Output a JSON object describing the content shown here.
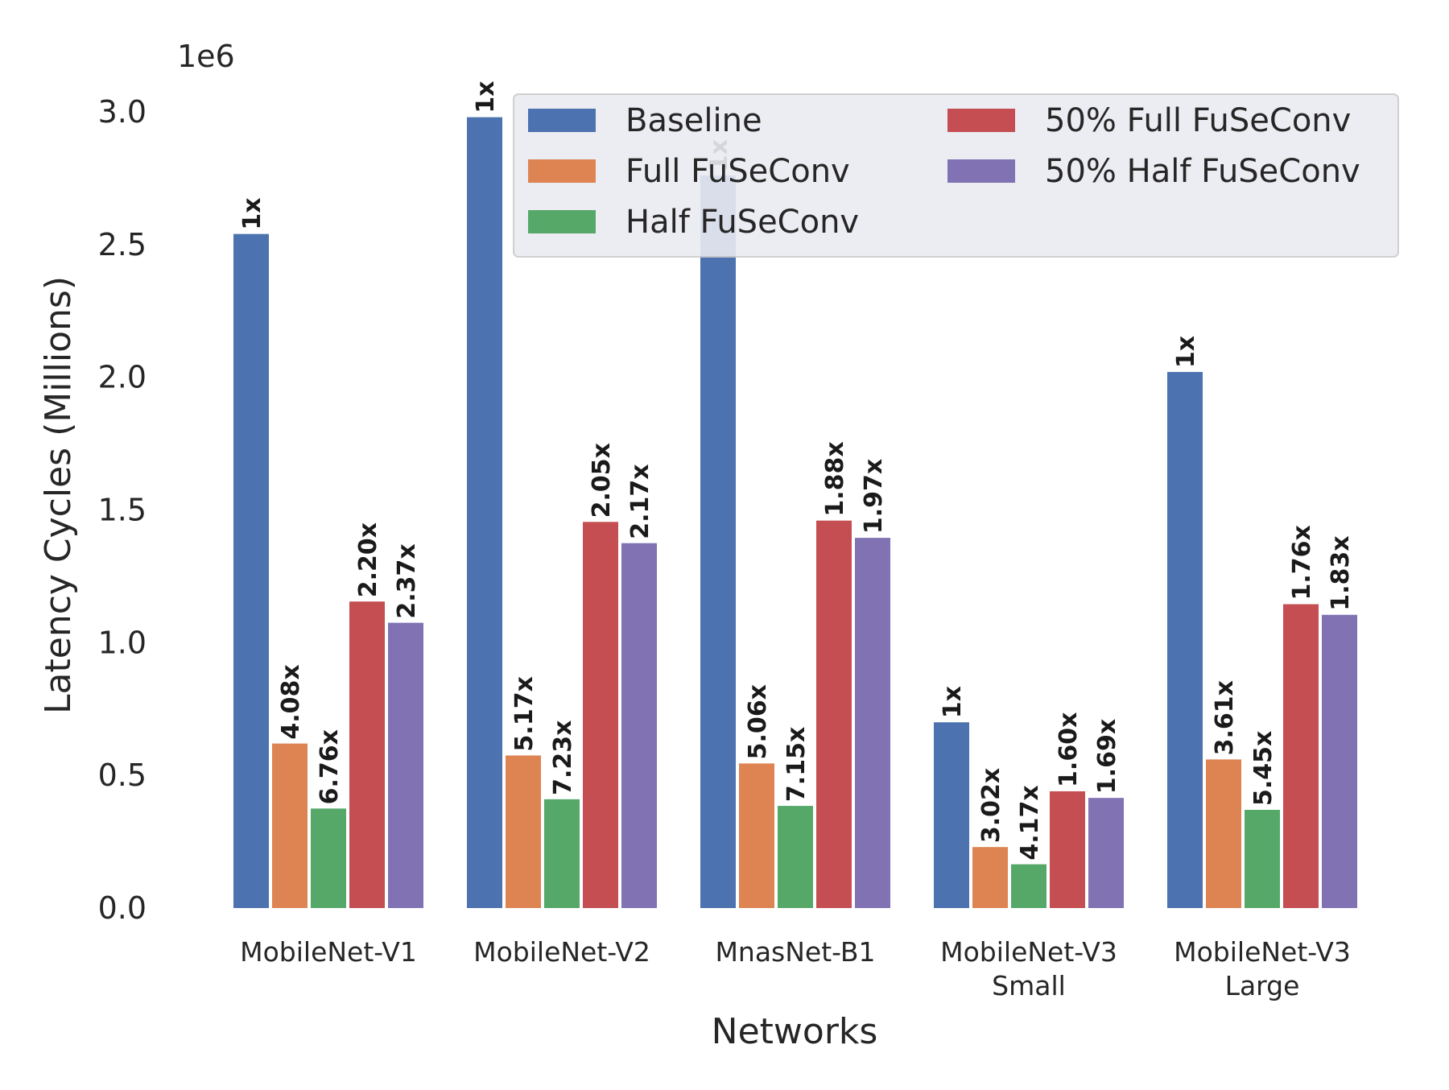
{
  "chart_data": {
    "type": "bar",
    "title": "",
    "xlabel": "Networks",
    "ylabel": "Latency Cycles (Millions)",
    "y_scale_label": "1e6",
    "ylim": [
      0,
      3.0
    ],
    "yticks": [
      "0.0",
      "0.5",
      "1.0",
      "1.5",
      "2.0",
      "2.5",
      "3.0"
    ],
    "categories": [
      [
        "MobileNet-V1"
      ],
      [
        "MobileNet-V2"
      ],
      [
        "MnasNet-B1"
      ],
      [
        "MobileNet-V3",
        "Small"
      ],
      [
        "MobileNet-V3",
        "Large"
      ]
    ],
    "legend_position": "top-right",
    "series": [
      {
        "name": "Baseline",
        "color": "#4c72b0",
        "values": [
          2.54,
          2.98,
          2.76,
          0.7,
          2.02
        ],
        "labels": [
          "1x",
          "1x",
          "1x",
          "1x",
          "1x"
        ]
      },
      {
        "name": "Full FuSeConv",
        "color": "#dd8452",
        "values": [
          0.62,
          0.575,
          0.545,
          0.23,
          0.56
        ],
        "labels": [
          "4.08x",
          "5.17x",
          "5.06x",
          "3.02x",
          "3.61x"
        ]
      },
      {
        "name": "Half FuSeConv",
        "color": "#55a868",
        "values": [
          0.375,
          0.41,
          0.385,
          0.165,
          0.37
        ],
        "labels": [
          "6.76x",
          "7.23x",
          "7.15x",
          "4.17x",
          "5.45x"
        ]
      },
      {
        "name": "50% Full FuSeConv",
        "color": "#c44e52",
        "values": [
          1.155,
          1.455,
          1.46,
          0.44,
          1.145
        ],
        "labels": [
          "2.20x",
          "2.05x",
          "1.88x",
          "1.60x",
          "1.76x"
        ]
      },
      {
        "name": "50% Half FuSeConv",
        "color": "#8172b3",
        "values": [
          1.075,
          1.375,
          1.395,
          0.415,
          1.105
        ],
        "labels": [
          "2.37x",
          "2.17x",
          "1.97x",
          "1.69x",
          "1.83x"
        ]
      }
    ]
  }
}
